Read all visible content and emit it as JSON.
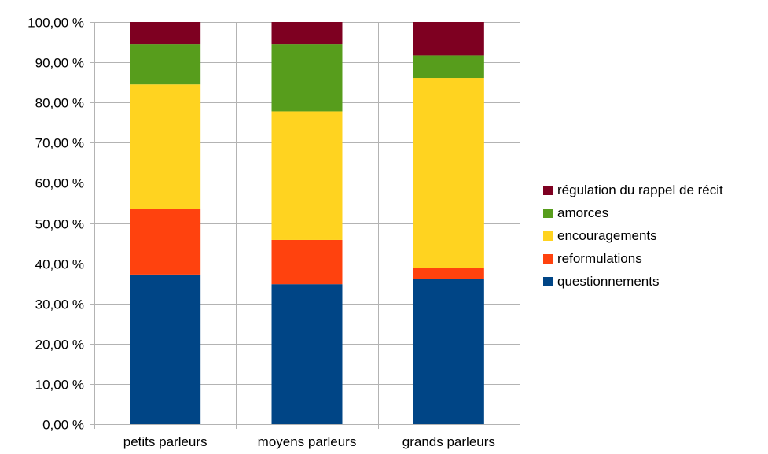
{
  "chart_data": {
    "type": "bar",
    "stacked": true,
    "percent": true,
    "categories": [
      "petits parleurs",
      "moyens parleurs",
      "grands parleurs"
    ],
    "series": [
      {
        "name": "questionnements",
        "color": "#004586",
        "values": [
          37.2,
          34.8,
          36.2
        ]
      },
      {
        "name": "reformulations",
        "color": "#ff420e",
        "values": [
          16.4,
          11.0,
          2.6
        ]
      },
      {
        "name": "encouragements",
        "color": "#ffd320",
        "values": [
          30.9,
          32.0,
          47.3
        ]
      },
      {
        "name": "amorces",
        "color": "#579d1c",
        "values": [
          10.0,
          16.7,
          5.6
        ]
      },
      {
        "name": "régulation du rappel de récit",
        "color": "#7e0021",
        "values": [
          5.5,
          5.5,
          8.3
        ]
      }
    ],
    "yticks": [
      "0,00 %",
      "10,00 %",
      "20,00 %",
      "30,00 %",
      "40,00 %",
      "50,00 %",
      "60,00 %",
      "70,00 %",
      "80,00 %",
      "90,00 %",
      "100,00 %"
    ],
    "ylim": [
      0,
      100
    ],
    "grid": true,
    "legend_position": "right",
    "title": "",
    "xlabel": "",
    "ylabel": ""
  }
}
